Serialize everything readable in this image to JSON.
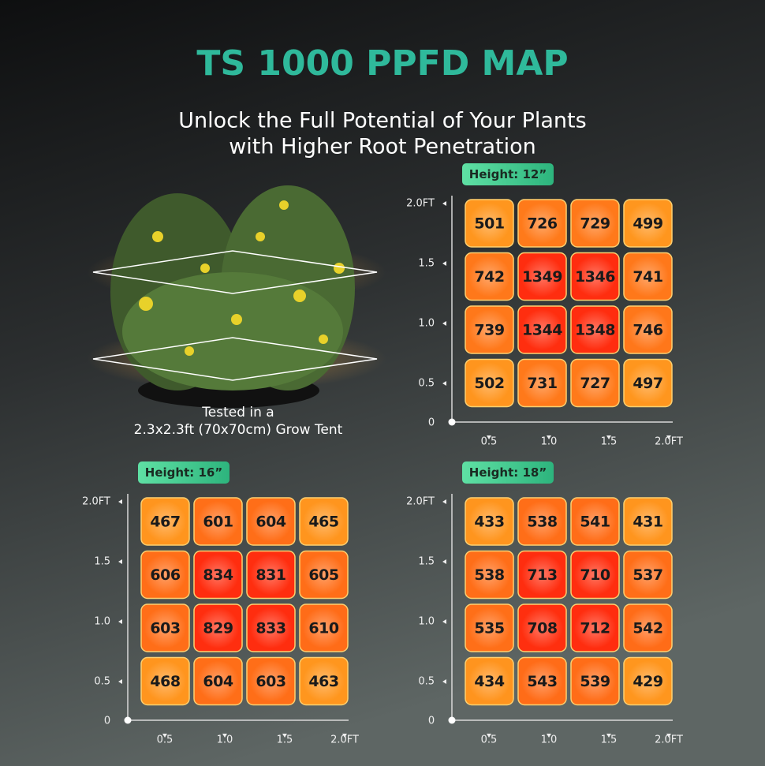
{
  "title": "TS 1000 PPFD MAP",
  "subtitle": [
    "Unlock the Full Potential of Your Plants",
    "with Higher Root Penetration"
  ],
  "caption": [
    "Tested in a",
    "2.3x2.3ft (70x70cm) Grow Tent"
  ],
  "maps": [
    {
      "label": "Height: 12”",
      "yticks": [
        "2.0FT",
        "1.5",
        "1.0",
        "0.5"
      ],
      "origin": "0",
      "xticks": [
        "0.5",
        "1.0",
        "1.5",
        "2.0FT"
      ],
      "rows": [
        [
          501,
          726,
          729,
          499
        ],
        [
          742,
          1349,
          1346,
          741
        ],
        [
          739,
          1344,
          1348,
          746
        ],
        [
          502,
          731,
          727,
          497
        ]
      ]
    },
    {
      "label": "Height: 16”",
      "yticks": [
        "2.0FT",
        "1.5",
        "1.0",
        "0.5"
      ],
      "origin": "0",
      "xticks": [
        "0.5",
        "1.0",
        "1.5",
        "2.0FT"
      ],
      "rows": [
        [
          467,
          601,
          604,
          465
        ],
        [
          606,
          834,
          831,
          605
        ],
        [
          603,
          829,
          833,
          610
        ],
        [
          468,
          604,
          603,
          463
        ]
      ]
    },
    {
      "label": "Height: 18”",
      "yticks": [
        "2.0FT",
        "1.5",
        "1.0",
        "0.5"
      ],
      "origin": "0",
      "xticks": [
        "0.5",
        "1.0",
        "1.5",
        "2.0FT"
      ],
      "rows": [
        [
          433,
          538,
          541,
          431
        ],
        [
          538,
          713,
          710,
          537
        ],
        [
          535,
          708,
          712,
          542
        ],
        [
          434,
          543,
          539,
          429
        ]
      ]
    }
  ]
}
